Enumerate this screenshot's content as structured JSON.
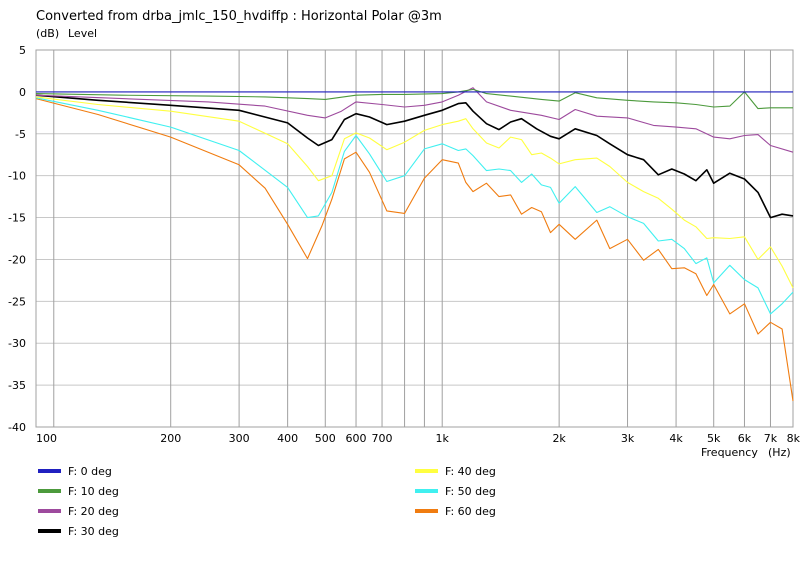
{
  "chart_data": {
    "type": "line",
    "title": "Converted from drba_jmlc_150_hvdiffp : Horizontal Polar @3m",
    "yunit": "(dB)",
    "ylabel": "Level",
    "xlabel": "Frequency",
    "xunit": "(Hz)",
    "xscale": "log",
    "xlim": [
      90,
      8000
    ],
    "ylim": [
      -40,
      5
    ],
    "grid": true,
    "legend_position": "bottom",
    "y_ticks": [
      5,
      0,
      -5,
      -10,
      -15,
      -20,
      -25,
      -30,
      -35,
      -40
    ],
    "y_tick_labels": [
      "5",
      "0",
      "-5",
      "-10",
      "-15",
      "-20",
      "-25",
      "-30",
      "-35",
      "-40"
    ],
    "x_ticks": [
      100,
      200,
      300,
      400,
      500,
      600,
      700,
      1000,
      2000,
      3000,
      4000,
      5000,
      6000,
      7000,
      8000
    ],
    "x_tick_labels": [
      "100",
      "200",
      "300",
      "400",
      "500",
      "600",
      "700",
      "1k",
      "2k",
      "3k",
      "4k",
      "5k",
      "6k",
      "7k",
      "8k"
    ],
    "x_grid": [
      100,
      200,
      300,
      400,
      500,
      600,
      700,
      800,
      900,
      1000,
      2000,
      3000,
      4000,
      5000,
      6000,
      7000,
      8000
    ],
    "series": [
      {
        "name": "F: 0 deg",
        "color": "#2020c0",
        "points": [
          [
            90,
            0
          ],
          [
            8000,
            0
          ]
        ]
      },
      {
        "name": "F: 10 deg",
        "color": "#4c9a3c",
        "points": [
          [
            90,
            -0.2
          ],
          [
            150,
            -0.4
          ],
          [
            250,
            -0.5
          ],
          [
            350,
            -0.6
          ],
          [
            450,
            -0.8
          ],
          [
            500,
            -0.9
          ],
          [
            600,
            -0.4
          ],
          [
            700,
            -0.3
          ],
          [
            800,
            -0.3
          ],
          [
            1000,
            -0.2
          ],
          [
            1100,
            0
          ],
          [
            1200,
            0.3
          ],
          [
            1300,
            -0.2
          ],
          [
            1500,
            -0.5
          ],
          [
            1800,
            -0.9
          ],
          [
            2000,
            -1.1
          ],
          [
            2200,
            -0.1
          ],
          [
            2500,
            -0.7
          ],
          [
            3000,
            -1
          ],
          [
            3500,
            -1.2
          ],
          [
            4000,
            -1.3
          ],
          [
            4500,
            -1.5
          ],
          [
            5000,
            -1.8
          ],
          [
            5500,
            -1.7
          ],
          [
            6000,
            0
          ],
          [
            6500,
            -2
          ],
          [
            7000,
            -1.9
          ],
          [
            8000,
            -1.9
          ]
        ]
      },
      {
        "name": "F: 20 deg",
        "color": "#9d4a9d",
        "points": [
          [
            90,
            -0.4
          ],
          [
            150,
            -0.8
          ],
          [
            250,
            -1.2
          ],
          [
            350,
            -1.7
          ],
          [
            450,
            -2.8
          ],
          [
            500,
            -3.1
          ],
          [
            550,
            -2.3
          ],
          [
            600,
            -1.2
          ],
          [
            700,
            -1.5
          ],
          [
            800,
            -1.8
          ],
          [
            900,
            -1.6
          ],
          [
            1000,
            -1.2
          ],
          [
            1100,
            -0.4
          ],
          [
            1200,
            0.5
          ],
          [
            1300,
            -1.2
          ],
          [
            1500,
            -2.2
          ],
          [
            1800,
            -2.8
          ],
          [
            2000,
            -3.3
          ],
          [
            2200,
            -2.1
          ],
          [
            2500,
            -2.9
          ],
          [
            3000,
            -3.1
          ],
          [
            3500,
            -4
          ],
          [
            4000,
            -4.2
          ],
          [
            4500,
            -4.4
          ],
          [
            5000,
            -5.4
          ],
          [
            5500,
            -5.6
          ],
          [
            6000,
            -5.2
          ],
          [
            6500,
            -5.1
          ],
          [
            7000,
            -6.4
          ],
          [
            8000,
            -7.2
          ]
        ]
      },
      {
        "name": "F: 30 deg",
        "color": "#000000",
        "points": [
          [
            90,
            -0.4
          ],
          [
            130,
            -1
          ],
          [
            200,
            -1.6
          ],
          [
            300,
            -2.2
          ],
          [
            400,
            -3.7
          ],
          [
            450,
            -5.5
          ],
          [
            480,
            -6.4
          ],
          [
            520,
            -5.7
          ],
          [
            560,
            -3.3
          ],
          [
            600,
            -2.6
          ],
          [
            650,
            -3
          ],
          [
            720,
            -3.9
          ],
          [
            800,
            -3.5
          ],
          [
            900,
            -2.8
          ],
          [
            1000,
            -2.2
          ],
          [
            1100,
            -1.4
          ],
          [
            1150,
            -1.3
          ],
          [
            1200,
            -2.3
          ],
          [
            1300,
            -3.8
          ],
          [
            1400,
            -4.5
          ],
          [
            1500,
            -3.6
          ],
          [
            1600,
            -3.2
          ],
          [
            1750,
            -4.4
          ],
          [
            1900,
            -5.3
          ],
          [
            2000,
            -5.6
          ],
          [
            2200,
            -4.4
          ],
          [
            2500,
            -5.2
          ],
          [
            2700,
            -6.2
          ],
          [
            3000,
            -7.5
          ],
          [
            3300,
            -8.1
          ],
          [
            3600,
            -9.9
          ],
          [
            3900,
            -9.2
          ],
          [
            4200,
            -9.8
          ],
          [
            4500,
            -10.6
          ],
          [
            4800,
            -9.3
          ],
          [
            5000,
            -10.9
          ],
          [
            5500,
            -9.7
          ],
          [
            6000,
            -10.4
          ],
          [
            6500,
            -12
          ],
          [
            7000,
            -15
          ],
          [
            7500,
            -14.6
          ],
          [
            8000,
            -14.8
          ]
        ]
      },
      {
        "name": "F: 40 deg",
        "color": "#ffff40",
        "points": [
          [
            90,
            -0.6
          ],
          [
            130,
            -1.5
          ],
          [
            200,
            -2.3
          ],
          [
            300,
            -3.5
          ],
          [
            400,
            -6.2
          ],
          [
            450,
            -8.9
          ],
          [
            480,
            -10.6
          ],
          [
            520,
            -10
          ],
          [
            560,
            -5.6
          ],
          [
            600,
            -4.9
          ],
          [
            650,
            -5.5
          ],
          [
            720,
            -6.9
          ],
          [
            800,
            -6
          ],
          [
            900,
            -4.6
          ],
          [
            1000,
            -3.9
          ],
          [
            1100,
            -3.5
          ],
          [
            1150,
            -3.2
          ],
          [
            1200,
            -4.4
          ],
          [
            1300,
            -6.1
          ],
          [
            1400,
            -6.7
          ],
          [
            1500,
            -5.4
          ],
          [
            1600,
            -5.7
          ],
          [
            1700,
            -7.5
          ],
          [
            1800,
            -7.3
          ],
          [
            1900,
            -7.9
          ],
          [
            2000,
            -8.6
          ],
          [
            2200,
            -8.1
          ],
          [
            2500,
            -7.9
          ],
          [
            2700,
            -8.9
          ],
          [
            3000,
            -10.8
          ],
          [
            3300,
            -11.9
          ],
          [
            3600,
            -12.7
          ],
          [
            3900,
            -14
          ],
          [
            4200,
            -15.3
          ],
          [
            4500,
            -16.1
          ],
          [
            4800,
            -17.5
          ],
          [
            5000,
            -17.4
          ],
          [
            5500,
            -17.5
          ],
          [
            6000,
            -17.3
          ],
          [
            6500,
            -20
          ],
          [
            7000,
            -18.5
          ],
          [
            7500,
            -20.8
          ],
          [
            8000,
            -23.4
          ]
        ]
      },
      {
        "name": "F: 50 deg",
        "color": "#40f0f0",
        "points": [
          [
            90,
            -0.7
          ],
          [
            130,
            -2.2
          ],
          [
            200,
            -4.2
          ],
          [
            300,
            -7
          ],
          [
            400,
            -11.4
          ],
          [
            450,
            -15
          ],
          [
            480,
            -14.8
          ],
          [
            520,
            -12
          ],
          [
            560,
            -7.1
          ],
          [
            600,
            -5.2
          ],
          [
            650,
            -7.4
          ],
          [
            720,
            -10.7
          ],
          [
            800,
            -10
          ],
          [
            900,
            -6.8
          ],
          [
            1000,
            -6.2
          ],
          [
            1100,
            -7
          ],
          [
            1150,
            -6.8
          ],
          [
            1200,
            -7.6
          ],
          [
            1300,
            -9.4
          ],
          [
            1400,
            -9.2
          ],
          [
            1500,
            -9.4
          ],
          [
            1600,
            -10.8
          ],
          [
            1700,
            -9.8
          ],
          [
            1800,
            -11.1
          ],
          [
            1900,
            -11.4
          ],
          [
            2000,
            -13.3
          ],
          [
            2200,
            -11.3
          ],
          [
            2500,
            -14.4
          ],
          [
            2700,
            -13.7
          ],
          [
            3000,
            -14.9
          ],
          [
            3300,
            -15.7
          ],
          [
            3600,
            -17.8
          ],
          [
            3900,
            -17.6
          ],
          [
            4200,
            -18.7
          ],
          [
            4500,
            -20.5
          ],
          [
            4800,
            -19.8
          ],
          [
            5000,
            -22.8
          ],
          [
            5500,
            -20.7
          ],
          [
            6000,
            -22.4
          ],
          [
            6500,
            -23.4
          ],
          [
            7000,
            -26.5
          ],
          [
            7500,
            -25.3
          ],
          [
            8000,
            -23.9
          ]
        ]
      },
      {
        "name": "F: 60 deg",
        "color": "#f07c10",
        "points": [
          [
            90,
            -0.8
          ],
          [
            130,
            -2.7
          ],
          [
            200,
            -5.4
          ],
          [
            300,
            -8.7
          ],
          [
            350,
            -11.5
          ],
          [
            400,
            -15.8
          ],
          [
            450,
            -19.9
          ],
          [
            490,
            -16
          ],
          [
            520,
            -12.8
          ],
          [
            560,
            -8
          ],
          [
            600,
            -7.2
          ],
          [
            650,
            -9.6
          ],
          [
            720,
            -14.2
          ],
          [
            800,
            -14.5
          ],
          [
            900,
            -10.3
          ],
          [
            1000,
            -8.1
          ],
          [
            1100,
            -8.5
          ],
          [
            1150,
            -10.8
          ],
          [
            1200,
            -11.9
          ],
          [
            1300,
            -10.9
          ],
          [
            1400,
            -12.5
          ],
          [
            1500,
            -12.3
          ],
          [
            1600,
            -14.6
          ],
          [
            1700,
            -13.8
          ],
          [
            1800,
            -14.3
          ],
          [
            1900,
            -16.8
          ],
          [
            2000,
            -15.8
          ],
          [
            2200,
            -17.6
          ],
          [
            2500,
            -15.3
          ],
          [
            2700,
            -18.7
          ],
          [
            3000,
            -17.6
          ],
          [
            3300,
            -20.1
          ],
          [
            3600,
            -18.8
          ],
          [
            3900,
            -21.1
          ],
          [
            4200,
            -21
          ],
          [
            4500,
            -21.7
          ],
          [
            4800,
            -24.3
          ],
          [
            5000,
            -23
          ],
          [
            5500,
            -26.5
          ],
          [
            6000,
            -25.3
          ],
          [
            6500,
            -28.9
          ],
          [
            7000,
            -27.5
          ],
          [
            7500,
            -28.3
          ],
          [
            8000,
            -36.9
          ]
        ]
      }
    ]
  }
}
